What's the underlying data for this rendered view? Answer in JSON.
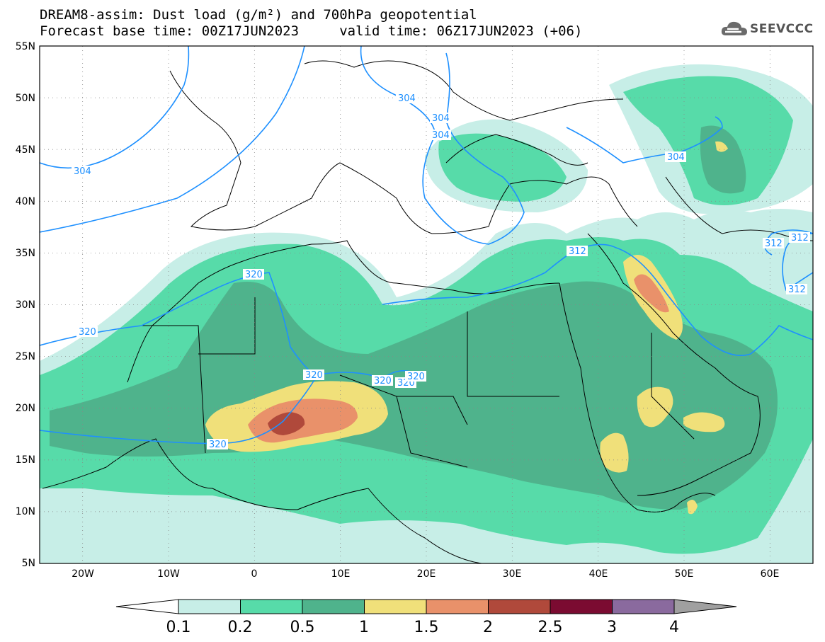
{
  "header": {
    "title_line1": "DREAM8-assim: Dust load (g/m²) and 700hPa geopotential",
    "title_line2": "Forecast base time: 00Z17JUN2023     valid time: 06Z17JUN2023 (+06)"
  },
  "logo": {
    "text": "SEEVCCC",
    "icon": "cloud-icon"
  },
  "map": {
    "lon_labels": [
      "20W",
      "10W",
      "0",
      "10E",
      "20E",
      "30E",
      "40E",
      "50E",
      "60E"
    ],
    "lat_labels": [
      "55N",
      "50N",
      "45N",
      "40N",
      "35N",
      "30N",
      "25N",
      "20N",
      "15N",
      "10N",
      "5N"
    ],
    "lon_range": [
      -25,
      65
    ],
    "lat_range": [
      5,
      55
    ],
    "contour_labels": [
      "304",
      "304",
      "304",
      "304",
      "304",
      "312",
      "312",
      "312",
      "312",
      "320",
      "320",
      "320",
      "320",
      "320",
      "320",
      "320"
    ],
    "contour_color": "#1e90ff"
  },
  "colorbar": {
    "tick_labels": [
      "0.1",
      "0.2",
      "0.5",
      "1",
      "1.5",
      "2",
      "2.5",
      "3",
      "4"
    ],
    "colors": [
      "#ffffff",
      "#c7eee7",
      "#57dba9",
      "#4fb38c",
      "#f0e07a",
      "#e9916a",
      "#b0493b",
      "#7b0b31",
      "#8a6a9e",
      "#a0a0a0"
    ]
  }
}
